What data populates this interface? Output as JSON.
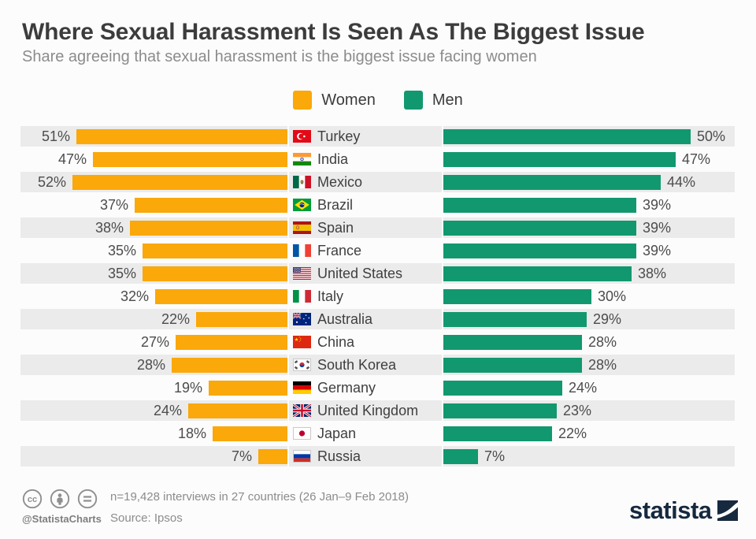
{
  "header": {
    "title": "Where Sexual Harassment Is Seen As The Biggest Issue",
    "subtitle": "Share agreeing that sexual harassment is the biggest issue facing women"
  },
  "chart_data": {
    "type": "bar",
    "orientation": "diverging-horizontal",
    "title": "Where Sexual Harassment Is Seen As The Biggest Issue",
    "subtitle": "Share agreeing that sexual harassment is the biggest issue facing women",
    "legend_position": "top-center",
    "grid": false,
    "value_suffix": "%",
    "categories": [
      "Turkey",
      "India",
      "Mexico",
      "Brazil",
      "Spain",
      "France",
      "United States",
      "Italy",
      "Australia",
      "China",
      "South Korea",
      "Germany",
      "United Kingdom",
      "Japan",
      "Russia"
    ],
    "flags": [
      "turkey",
      "india",
      "mexico",
      "brazil",
      "spain",
      "france",
      "united-states",
      "italy",
      "australia",
      "china",
      "south-korea",
      "germany",
      "united-kingdom",
      "japan",
      "russia"
    ],
    "series": [
      {
        "name": "Women",
        "color": "#FAA80A",
        "axis_max": 52,
        "values": [
          51,
          47,
          52,
          37,
          38,
          35,
          35,
          32,
          22,
          27,
          28,
          19,
          24,
          18,
          7
        ]
      },
      {
        "name": "Men",
        "color": "#12986F",
        "axis_max": 50,
        "values": [
          50,
          47,
          44,
          39,
          39,
          39,
          38,
          30,
          29,
          28,
          28,
          24,
          23,
          22,
          7
        ]
      }
    ],
    "row_stripe_color": "#ebebeb"
  },
  "footer": {
    "note": "n=19,428 interviews in 27 countries (26 Jan–9 Feb 2018)",
    "source": "Source: Ipsos",
    "handle": "@StatistaCharts",
    "brand": "statista"
  }
}
